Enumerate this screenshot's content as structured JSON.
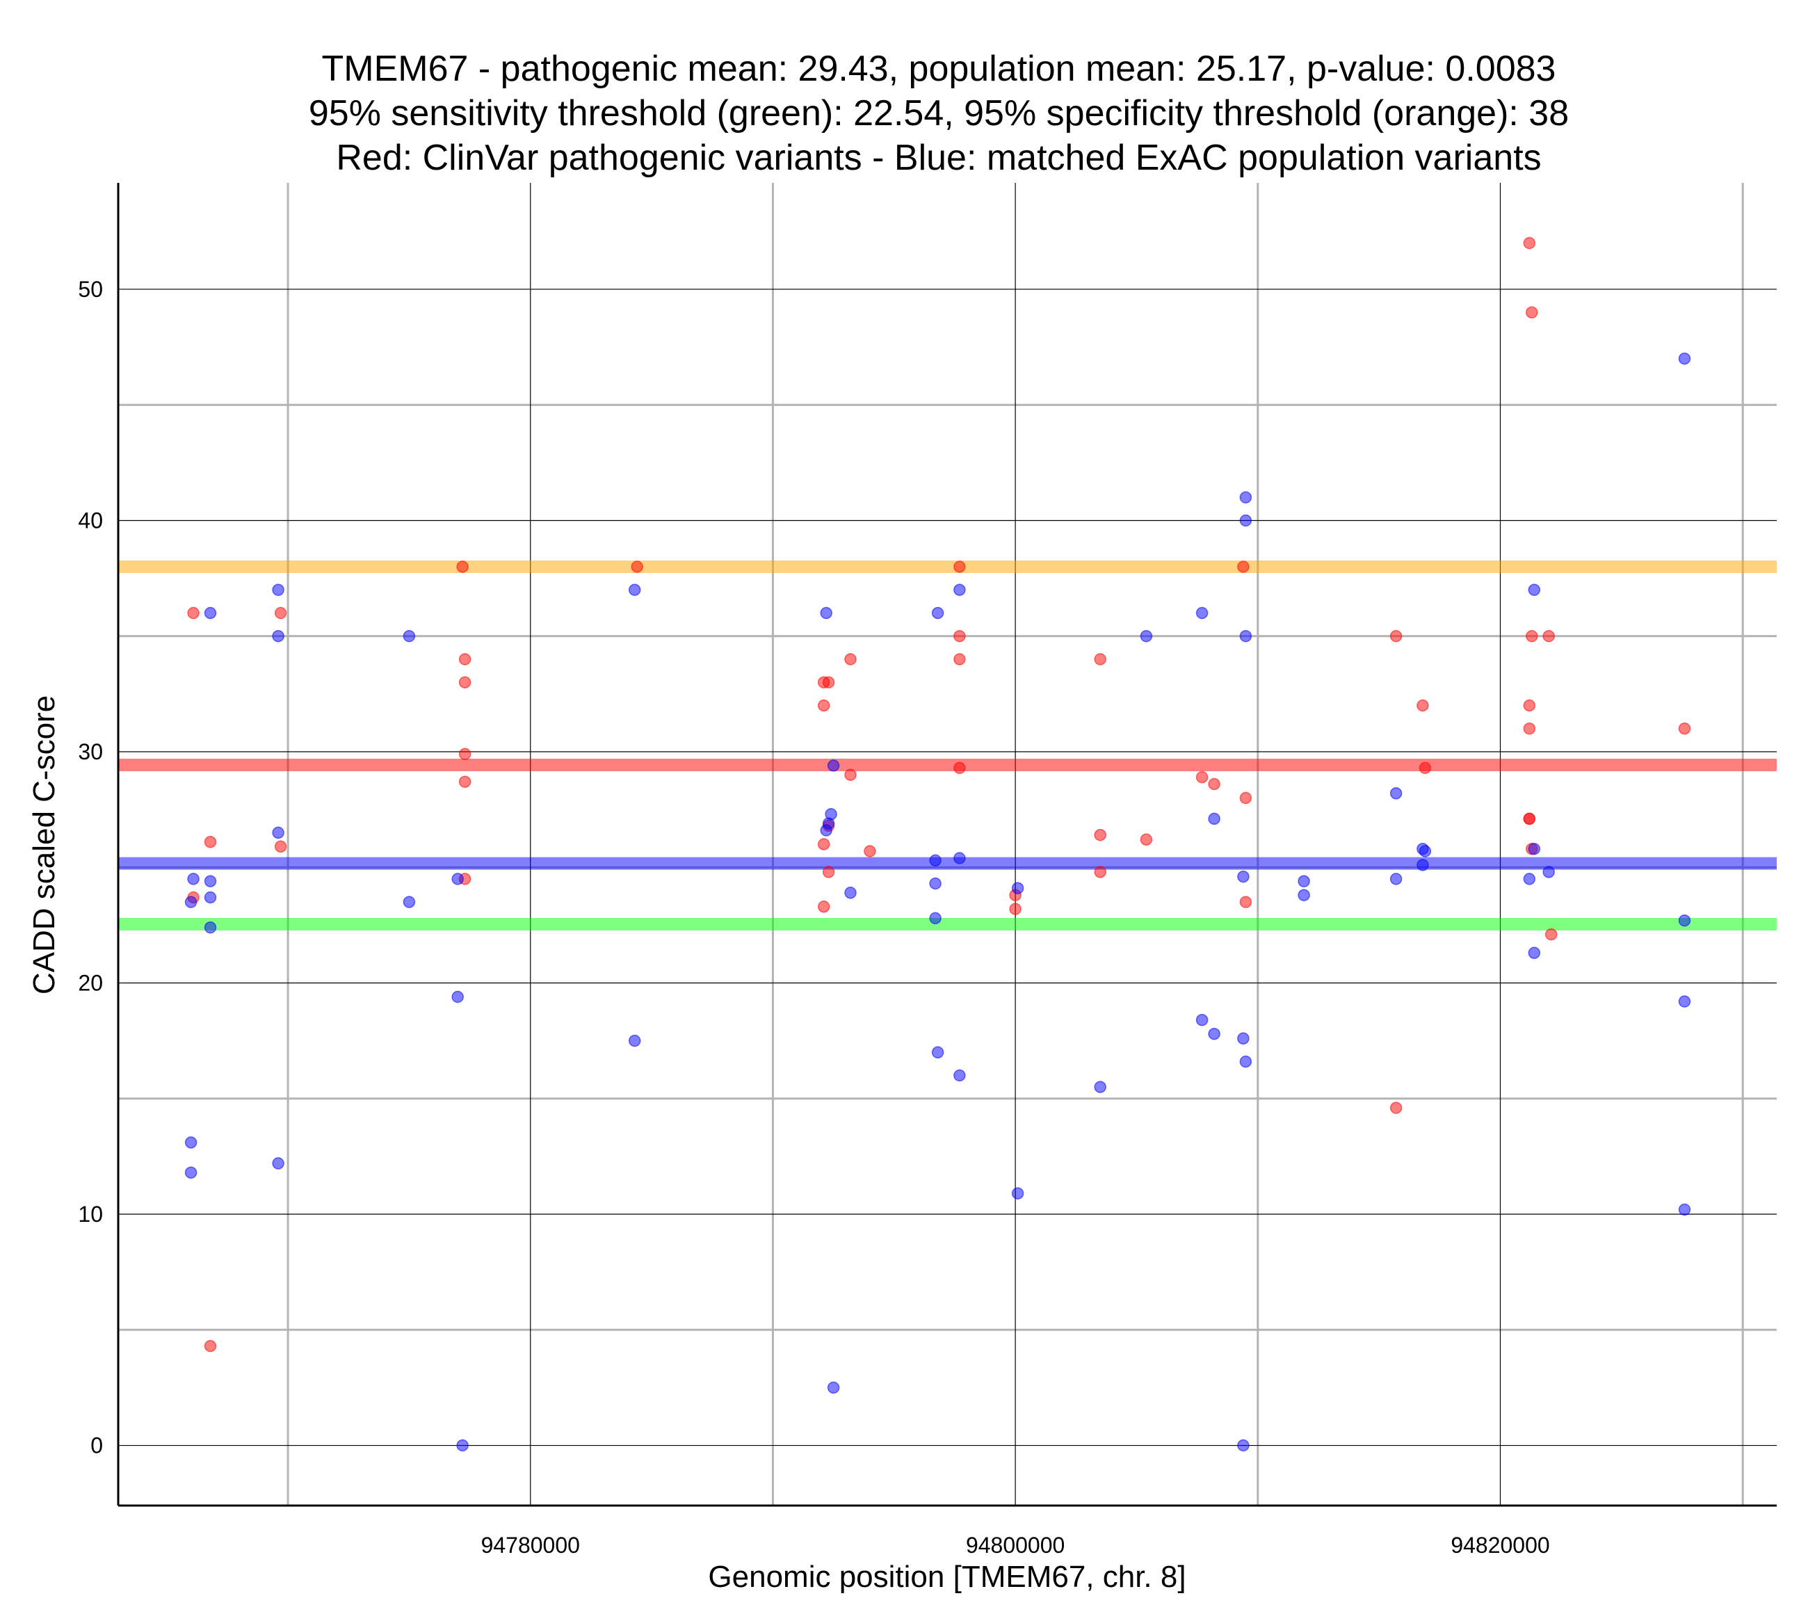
{
  "chart_data": {
    "type": "scatter",
    "title_lines": [
      "TMEM67 - pathogenic mean: 29.43, population mean: 25.17, p-value: 0.0083",
      "95% sensitivity threshold (green): 22.54, 95% specificity threshold (orange): 38",
      "Red: ClinVar pathogenic variants - Blue: matched ExAC population variants"
    ],
    "xlabel": "Genomic position [TMEM67, chr. 8]",
    "ylabel": "CADD scaled C-score",
    "xlim": [
      94763000,
      94831400
    ],
    "ylim": [
      -2.6,
      54.6
    ],
    "x_ticks": [
      94780000,
      94800000,
      94820000
    ],
    "x_tick_labels": [
      "94780000",
      "94800000",
      "94820000"
    ],
    "x_minor_gridlines": [
      94770000,
      94790000,
      94810000,
      94830000
    ],
    "y_ticks": [
      0,
      10,
      20,
      30,
      40,
      50
    ],
    "y_tick_labels": [
      "0",
      "10",
      "20",
      "30",
      "40",
      "50"
    ],
    "y_minor_gridlines": [
      5,
      15,
      25,
      35,
      45
    ],
    "grid": true,
    "reference_lines": [
      {
        "name": "specificity threshold",
        "value": 38,
        "color": "#FFA500"
      },
      {
        "name": "pathogenic mean",
        "value": 29.43,
        "color": "#FF0000"
      },
      {
        "name": "population mean",
        "value": 25.17,
        "color": "#0000FF"
      },
      {
        "name": "sensitivity threshold",
        "value": 22.54,
        "color": "#00FF00"
      }
    ],
    "series": [
      {
        "name": "ClinVar pathogenic variants",
        "color": "#FF0000",
        "points": [
          [
            94766100,
            36
          ],
          [
            94766100,
            23.7
          ],
          [
            94766800,
            26.1
          ],
          [
            94766800,
            4.3
          ],
          [
            94769700,
            36
          ],
          [
            94769700,
            25.9
          ],
          [
            94777200,
            38
          ],
          [
            94777300,
            34
          ],
          [
            94777300,
            33
          ],
          [
            94777300,
            29.9
          ],
          [
            94777300,
            28.7
          ],
          [
            94777300,
            24.5
          ],
          [
            94784400,
            38
          ],
          [
            94792100,
            33
          ],
          [
            94792100,
            32
          ],
          [
            94792100,
            26
          ],
          [
            94792100,
            23.3
          ],
          [
            94792300,
            33
          ],
          [
            94792300,
            26.8
          ],
          [
            94792300,
            24.8
          ],
          [
            94793200,
            34
          ],
          [
            94793200,
            29
          ],
          [
            94794000,
            25.7
          ],
          [
            94797700,
            38
          ],
          [
            94797700,
            35
          ],
          [
            94797700,
            34
          ],
          [
            94797700,
            29.3
          ],
          [
            94800000,
            23.8
          ],
          [
            94800000,
            23.2
          ],
          [
            94803500,
            34
          ],
          [
            94803500,
            26.4
          ],
          [
            94803500,
            24.8
          ],
          [
            94805400,
            26.2
          ],
          [
            94807700,
            28.9
          ],
          [
            94808200,
            28.6
          ],
          [
            94809400,
            38
          ],
          [
            94809500,
            28
          ],
          [
            94809500,
            23.5
          ],
          [
            94815700,
            35
          ],
          [
            94815700,
            14.6
          ],
          [
            94816800,
            32
          ],
          [
            94816900,
            29.3
          ],
          [
            94821200,
            52
          ],
          [
            94821200,
            32
          ],
          [
            94821200,
            31
          ],
          [
            94821200,
            27.1
          ],
          [
            94821200,
            27.1
          ],
          [
            94821300,
            25.8
          ],
          [
            94821300,
            49
          ],
          [
            94821300,
            35
          ],
          [
            94822000,
            35
          ],
          [
            94822100,
            22.1
          ],
          [
            94827600,
            31
          ]
        ]
      },
      {
        "name": "matched ExAC population variants",
        "color": "#0000FF",
        "points": [
          [
            94766000,
            23.5
          ],
          [
            94766000,
            13.1
          ],
          [
            94766000,
            11.8
          ],
          [
            94766100,
            24.5
          ],
          [
            94766800,
            36
          ],
          [
            94766800,
            24.4
          ],
          [
            94766800,
            23.7
          ],
          [
            94766800,
            22.4
          ],
          [
            94769600,
            37
          ],
          [
            94769600,
            35
          ],
          [
            94769600,
            26.5
          ],
          [
            94769600,
            12.2
          ],
          [
            94775000,
            35
          ],
          [
            94775000,
            23.5
          ],
          [
            94777000,
            24.5
          ],
          [
            94777000,
            19.4
          ],
          [
            94777200,
            0
          ],
          [
            94784300,
            37
          ],
          [
            94784300,
            17.5
          ],
          [
            94792200,
            36
          ],
          [
            94792200,
            26.6
          ],
          [
            94792300,
            26.9
          ],
          [
            94792400,
            27.3
          ],
          [
            94792500,
            29.4
          ],
          [
            94792500,
            2.5
          ],
          [
            94793200,
            23.9
          ],
          [
            94796700,
            24.3
          ],
          [
            94796700,
            25.3
          ],
          [
            94796800,
            36
          ],
          [
            94796700,
            22.8
          ],
          [
            94796800,
            17
          ],
          [
            94797700,
            37
          ],
          [
            94797700,
            25.4
          ],
          [
            94797700,
            16
          ],
          [
            94800100,
            24.1
          ],
          [
            94800100,
            10.9
          ],
          [
            94803500,
            15.5
          ],
          [
            94805400,
            35
          ],
          [
            94807700,
            36
          ],
          [
            94807700,
            18.4
          ],
          [
            94808200,
            17.8
          ],
          [
            94808200,
            27.1
          ],
          [
            94809500,
            41
          ],
          [
            94809500,
            40
          ],
          [
            94809500,
            35
          ],
          [
            94809400,
            24.6
          ],
          [
            94809400,
            17.6
          ],
          [
            94809500,
            16.6
          ],
          [
            94809400,
            0
          ],
          [
            94811900,
            24.4
          ],
          [
            94811900,
            23.8
          ],
          [
            94815700,
            24.5
          ],
          [
            94815700,
            28.2
          ],
          [
            94816800,
            25.8
          ],
          [
            94816800,
            25.1
          ],
          [
            94816900,
            25.7
          ],
          [
            94821200,
            24.5
          ],
          [
            94821400,
            37
          ],
          [
            94821400,
            25.8
          ],
          [
            94821400,
            21.3
          ],
          [
            94822000,
            24.8
          ],
          [
            94827600,
            47
          ],
          [
            94827600,
            22.7
          ],
          [
            94827600,
            19.2
          ],
          [
            94827600,
            10.2
          ]
        ]
      }
    ]
  }
}
